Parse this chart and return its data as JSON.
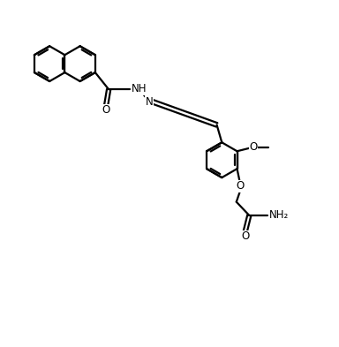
{
  "bg_color": "#ffffff",
  "line_color": "#000000",
  "line_width": 1.6,
  "font_size": 8.5,
  "figsize": [
    3.84,
    3.93
  ],
  "dpi": 100,
  "xlim": [
    0,
    10
  ],
  "ylim": [
    0,
    10.2
  ]
}
